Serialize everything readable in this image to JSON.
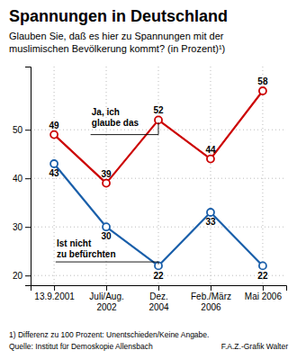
{
  "chart_data": {
    "type": "line",
    "title": "Spannungen in Deutschland",
    "subtitle": [
      "Glauben Sie, daß es hier zu Spannungen mit der",
      "muslimischen Bevölkerung kommt? (in Prozent)¹)"
    ],
    "categories": [
      "13.9.2001",
      "Juli/Aug.\n2002",
      "Dez.\n2004",
      "Feb./März\n2006",
      "Mai 2006"
    ],
    "series": [
      {
        "name": "Ja, ich\nglaube das",
        "color": "#cc0000",
        "values": [
          49,
          39,
          52,
          44,
          58
        ]
      },
      {
        "name": "Ist nicht\nzu befürchten",
        "color": "#1a5faa",
        "values": [
          43,
          30,
          22,
          33,
          22
        ]
      }
    ],
    "ylim": [
      18,
      63
    ],
    "yticks": [
      20,
      30,
      40,
      50
    ],
    "grid": true,
    "data_labels": true,
    "marker": "circle",
    "footnotes": [
      "1) Differenz zu 100 Prozent: Unentschieden/Keine Angabe.",
      "Quelle: Institut für Demoskopie Allensbach",
      "F.A.Z.-Grafik Walter"
    ]
  }
}
